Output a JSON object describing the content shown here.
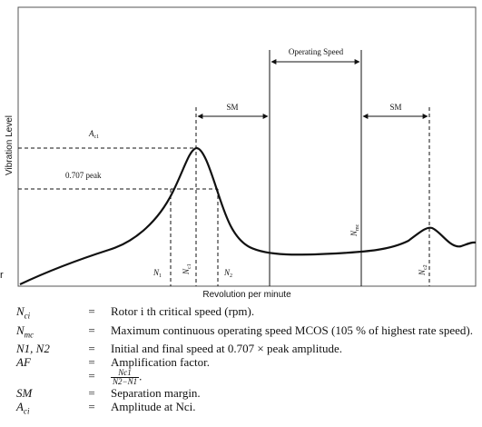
{
  "diagram": {
    "y_axis_label": "Vibration Level",
    "x_axis_label": "Revolution per minute",
    "operating_speed_label": "Operating Speed",
    "sm_left_label": "SM",
    "sm_right_label": "SM",
    "amplitude_label": "A",
    "amplitude_sub": "c1",
    "half_power_label": "0.707 peak",
    "markers": {
      "n1": {
        "base": "N",
        "sub": "1"
      },
      "nc1": {
        "base": "N",
        "sub": "c1"
      },
      "n2": {
        "base": "N",
        "sub": "2"
      },
      "nmc": {
        "base": "N",
        "sub": "mc"
      },
      "nc2": {
        "base": "N",
        "sub": "c2"
      }
    }
  },
  "page_edge_fragment": "r",
  "legend": [
    {
      "symbol": "N",
      "symbol_sub": "ci",
      "eq": "=",
      "desc": "Rotor i th critical speed (rpm)."
    },
    {
      "symbol": "N",
      "symbol_sub": "mc",
      "eq": "=",
      "desc": "Maximum continuous operating speed MCOS (105 % of highest rate speed)."
    },
    {
      "symbol": "N1, N2",
      "symbol_sub": "",
      "eq": "=",
      "desc": "Initial and final speed at 0.707 × peak amplitude."
    },
    {
      "symbol": "AF",
      "symbol_sub": "",
      "eq": "=",
      "desc": "Amplification factor."
    },
    {
      "symbol": "",
      "symbol_sub": "",
      "eq": "=",
      "desc": ".",
      "fraction": {
        "num": "Nc1",
        "den": "N2−N1"
      }
    },
    {
      "symbol": "SM",
      "symbol_sub": "",
      "eq": "=",
      "desc": "Separation margin."
    },
    {
      "symbol": "A",
      "symbol_sub": "ci",
      "eq": "=",
      "desc": "Amplitude at Nci."
    }
  ]
}
